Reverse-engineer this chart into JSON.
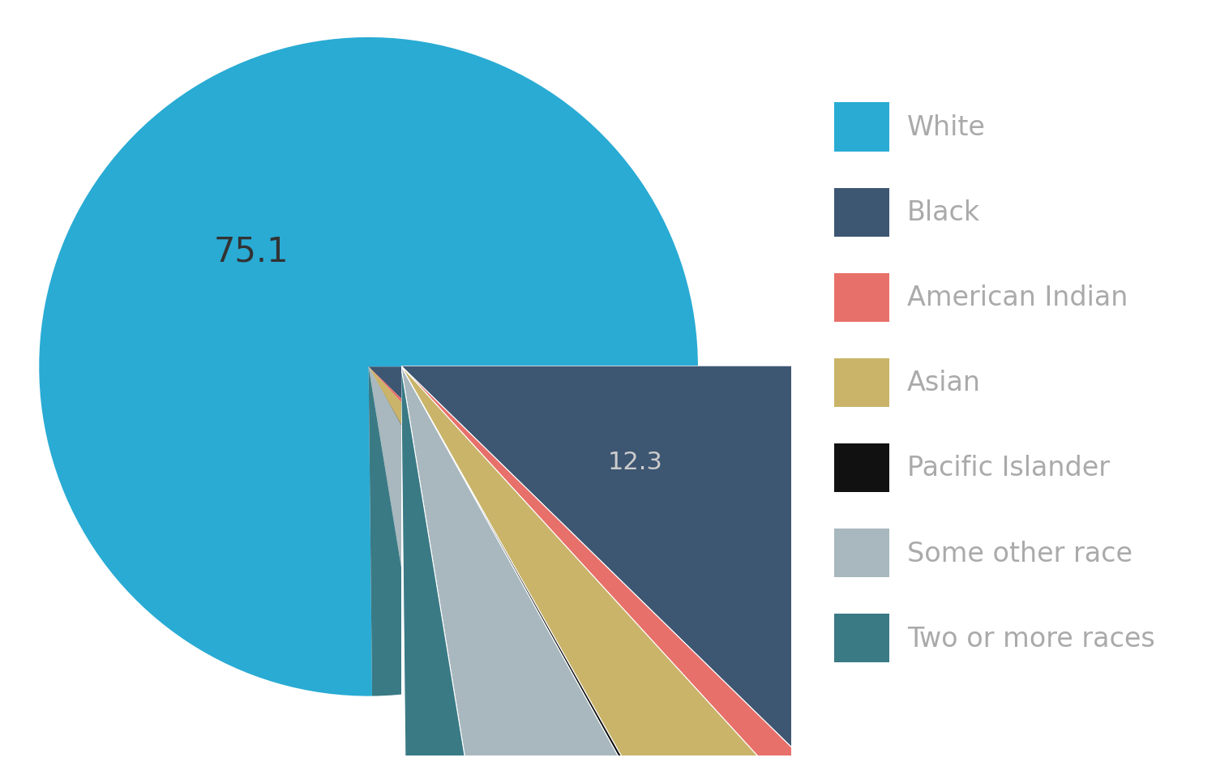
{
  "labels": [
    "White",
    "Black",
    "American Indian",
    "Asian",
    "Pacific Islander",
    "Some other race",
    "Two or more races"
  ],
  "values": [
    75.1,
    12.3,
    0.9,
    3.6,
    0.1,
    5.5,
    2.4
  ],
  "colors": [
    "#29ABD4",
    "#3D5672",
    "#E8706A",
    "#C9B469",
    "#111111",
    "#A8B8BE",
    "#3A7A85"
  ],
  "label_colors": [
    "#333333",
    "#CCCCCC",
    "#E86060",
    "#C9B469",
    "#111111",
    "#A0B0B8",
    "#29ABD4"
  ],
  "legend_text_color": "#AAAAAA",
  "background_color": "#FFFFFF",
  "figsize": [
    15.0,
    9.62
  ],
  "dpi": 100
}
